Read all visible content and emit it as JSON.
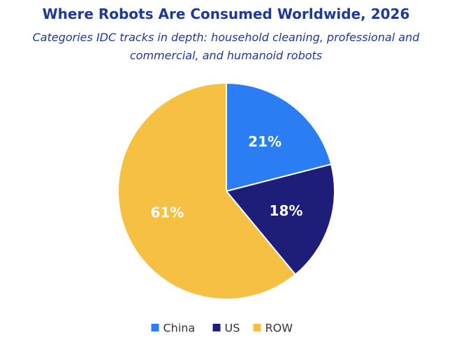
{
  "title": "Where Robots Are Consumed Worldwide, 2026",
  "subtitle": "Categories IDC tracks in depth: household cleaning, professional and commercial, and humanoid robots",
  "colors": {
    "title": "#1f3a93",
    "China": "#2a7df2",
    "US": "#1e1e7a",
    "ROW": "#f6c043"
  },
  "chart_data": {
    "type": "pie",
    "title": "Where Robots Are Consumed Worldwide, 2026",
    "subtitle": "Categories IDC tracks in depth: household cleaning, professional and commercial, and humanoid robots",
    "categories": [
      "China",
      "US",
      "ROW"
    ],
    "values": [
      21,
      18,
      61
    ],
    "data_labels": [
      "21%",
      "18%",
      "61%"
    ],
    "legend_position": "bottom"
  }
}
